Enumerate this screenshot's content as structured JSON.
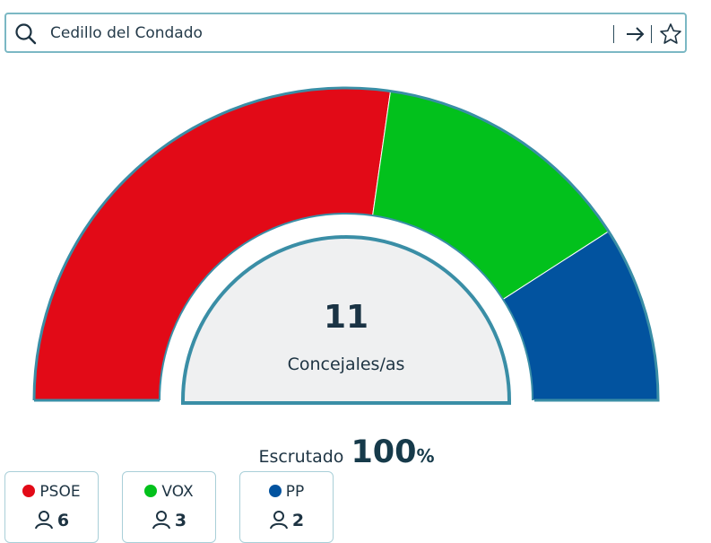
{
  "search": {
    "value": "Cedillo del Condado",
    "placeholder": "",
    "icons": [
      "search-icon",
      "arrow-right-icon",
      "star-icon"
    ]
  },
  "chart_data": {
    "type": "pie",
    "shape": "half-donut",
    "total_label": "11",
    "center_label": "Concejales/as",
    "categories": [
      "PSOE",
      "VOX",
      "PP"
    ],
    "values": [
      6,
      3,
      2
    ],
    "colors": [
      "#e20a17",
      "#02c11c",
      "#02539f"
    ]
  },
  "scrutiny": {
    "label": "Escrutado",
    "value": "100",
    "unit": "%"
  },
  "parties": [
    {
      "name": "PSOE",
      "seats": "6",
      "color": "#e20a17"
    },
    {
      "name": "VOX",
      "seats": "3",
      "color": "#02c11c"
    },
    {
      "name": "PP",
      "seats": "2",
      "color": "#02539f"
    }
  ],
  "colors": {
    "border": "#3a8ea6",
    "center_fill": "#eff0f1"
  }
}
